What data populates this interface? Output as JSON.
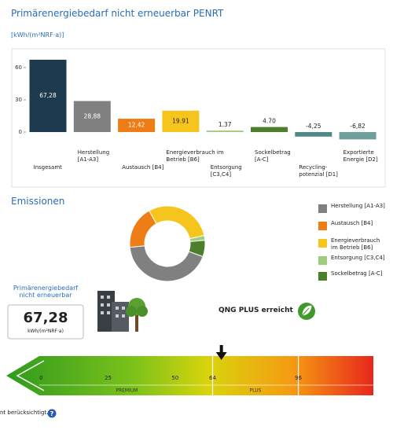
{
  "header": {
    "title": "Primärenergiebedarf nicht erneuerbar PENRT",
    "unit": "[kWh/(m²NRF·a)]"
  },
  "chart_data": [
    {
      "type": "bar",
      "categories": [
        "Insgesamt",
        "Herstellung [A1-A3]",
        "Austausch [B4]",
        "Energieverbrauch im Betrieb [B6]",
        "Entsorgung [C3,C4]",
        "Sockelbetrag [A-C]",
        "Recycling-potenzial [D1]",
        "Exportierte Energie [D2]"
      ],
      "values": [
        67.28,
        28.88,
        12.42,
        19.91,
        1.37,
        4.7,
        -4.25,
        -6.82
      ],
      "value_labels": [
        "67,28",
        "28,88",
        "12,42",
        "19.91",
        "1.37",
        "4.70",
        "-4,25",
        "-6,82"
      ],
      "colors": [
        "#1d3a4f",
        "#808080",
        "#ef7d16",
        "#f6c51d",
        "#9fcb7c",
        "#4b7f2b",
        "#4f8b86",
        "#6f9f9c"
      ],
      "ylim": [
        -10,
        70
      ],
      "yticks": [
        0,
        30,
        60
      ],
      "grid": false
    },
    {
      "type": "donut",
      "title": "Emissionen",
      "categories": [
        "Herstellung [A1-A3]",
        "Austausch [B4]",
        "Energieverbrauch im Betrieb [B6]",
        "Entsorgung [C3,C4]",
        "Sockelbetrag [A-C]"
      ],
      "values": [
        28.88,
        12.42,
        19.91,
        1.37,
        4.7
      ],
      "colors": [
        "#808080",
        "#ef7d16",
        "#f6c51d",
        "#9fcb7c",
        "#4b7f2b"
      ]
    },
    {
      "type": "gauge",
      "xlim": [
        -13,
        124
      ],
      "xticks": [
        0,
        25,
        50,
        64,
        96
      ],
      "bands": [
        {
          "name": "PREMIUM",
          "range": [
            0,
            64
          ]
        },
        {
          "name": "PLUS",
          "range": [
            64,
            96
          ]
        }
      ]
    }
  ],
  "indicator": {
    "label": "Primärenergiebedarf nicht erneuerbar",
    "unit": "kWh/(m²NRF·a)"
  },
  "certification": "QNG PLUS erreicht",
  "footer": "nt berücksichtigt."
}
